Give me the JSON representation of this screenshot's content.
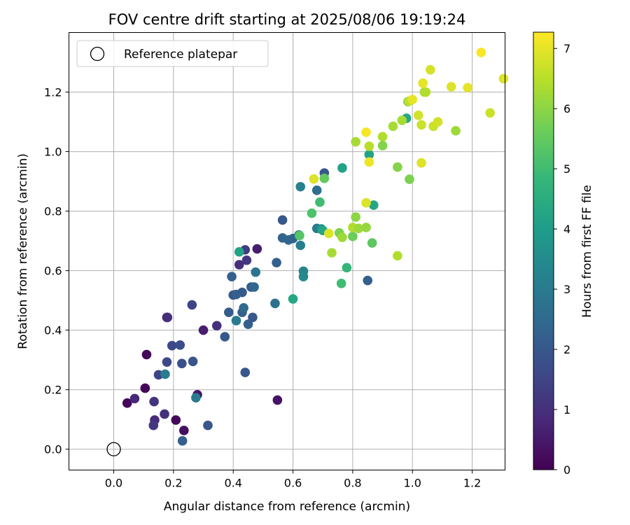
{
  "chart_data": {
    "type": "scatter",
    "title": "FOV centre drift starting at 2025/08/06 19:19:24",
    "xlabel": "Angular distance from reference (arcmin)",
    "ylabel": "Rotation from reference (arcmin)",
    "xlim": [
      -0.15,
      1.31
    ],
    "ylim": [
      -0.07,
      1.4
    ],
    "xticks": [
      0.0,
      0.2,
      0.4,
      0.6,
      0.8,
      1.0,
      1.2
    ],
    "xtick_labels": [
      "0.0",
      "0.2",
      "0.4",
      "0.6",
      "0.8",
      "1.0",
      "1.2"
    ],
    "yticks": [
      0.0,
      0.2,
      0.4,
      0.6,
      0.8,
      1.0,
      1.2
    ],
    "ytick_labels": [
      "0.0",
      "0.2",
      "0.4",
      "0.6",
      "0.8",
      "1.0",
      "1.2"
    ],
    "grid": true,
    "legend": {
      "location": "upper-left",
      "entries": [
        {
          "label": "Reference platepar",
          "marker": "open-circle",
          "x": 0.0,
          "y": 0.0
        }
      ]
    },
    "colorbar": {
      "label": "Hours from first FF file",
      "colormap": "viridis",
      "range": [
        0,
        7.27
      ],
      "ticks": [
        0,
        1,
        2,
        3,
        4,
        5,
        6,
        7
      ],
      "tick_labels": [
        "0",
        "1",
        "2",
        "3",
        "4",
        "5",
        "6",
        "7"
      ]
    },
    "colormap_stops": [
      "#440154",
      "#482878",
      "#3e4989",
      "#31688e",
      "#26828e",
      "#1f9e89",
      "#35b779",
      "#6ece58",
      "#b5de2b",
      "#fde725"
    ],
    "points": [
      [
        0.045,
        0.155,
        0.1
      ],
      [
        0.105,
        0.205,
        0.1
      ],
      [
        0.11,
        0.318,
        0.1
      ],
      [
        0.208,
        0.098,
        0.1
      ],
      [
        0.235,
        0.063,
        0.3
      ],
      [
        0.28,
        0.183,
        0.4
      ],
      [
        0.178,
        0.443,
        0.3
      ],
      [
        0.3,
        0.4,
        0.6
      ],
      [
        0.548,
        0.165,
        0.4
      ],
      [
        0.48,
        0.673,
        0.6
      ],
      [
        0.07,
        0.17,
        0.8
      ],
      [
        0.137,
        0.098,
        0.9
      ],
      [
        0.17,
        0.118,
        1.0
      ],
      [
        0.135,
        0.16,
        1.1
      ],
      [
        0.133,
        0.08,
        1.2
      ],
      [
        0.18,
        0.443,
        1.0
      ],
      [
        0.345,
        0.415,
        1.0
      ],
      [
        0.42,
        0.62,
        1.0
      ],
      [
        0.445,
        0.635,
        1.2
      ],
      [
        0.44,
        0.67,
        1.3
      ],
      [
        0.15,
        0.25,
        1.5
      ],
      [
        0.178,
        0.293,
        1.6
      ],
      [
        0.195,
        0.348,
        1.6
      ],
      [
        0.222,
        0.35,
        1.7
      ],
      [
        0.228,
        0.288,
        1.8
      ],
      [
        0.262,
        0.485,
        1.5
      ],
      [
        0.265,
        0.295,
        1.9
      ],
      [
        0.315,
        0.08,
        2.0
      ],
      [
        0.23,
        0.028,
        2.2
      ],
      [
        0.372,
        0.378,
        2.0
      ],
      [
        0.385,
        0.46,
        2.1
      ],
      [
        0.4,
        0.518,
        2.0
      ],
      [
        0.41,
        0.52,
        2.2
      ],
      [
        0.43,
        0.527,
        2.1
      ],
      [
        0.43,
        0.46,
        2.2
      ],
      [
        0.44,
        0.258,
        2.0
      ],
      [
        0.45,
        0.42,
        2.2
      ],
      [
        0.465,
        0.443,
        2.0
      ],
      [
        0.46,
        0.545,
        2.1
      ],
      [
        0.47,
        0.545,
        2.4
      ],
      [
        0.395,
        0.58,
        2.2
      ],
      [
        0.435,
        0.475,
        2.5
      ],
      [
        0.545,
        0.627,
        2.2
      ],
      [
        0.565,
        0.77,
        2.0
      ],
      [
        0.565,
        0.71,
        2.3
      ],
      [
        0.585,
        0.703,
        2.4
      ],
      [
        0.6,
        0.708,
        2.3
      ],
      [
        0.62,
        0.72,
        2.5
      ],
      [
        0.54,
        0.49,
        2.7
      ],
      [
        0.475,
        0.595,
        2.8
      ],
      [
        0.41,
        0.432,
        3.0
      ],
      [
        0.625,
        0.685,
        3.1
      ],
      [
        0.635,
        0.598,
        3.3
      ],
      [
        0.635,
        0.58,
        3.4
      ],
      [
        0.625,
        0.882,
        3.2
      ],
      [
        0.68,
        0.87,
        2.6
      ],
      [
        0.705,
        0.928,
        2.0
      ],
      [
        0.85,
        0.567,
        2.2
      ],
      [
        0.68,
        0.742,
        3.0
      ],
      [
        0.695,
        0.74,
        3.7
      ],
      [
        0.7,
        0.735,
        4.3
      ],
      [
        0.275,
        0.173,
        3.0
      ],
      [
        0.172,
        0.252,
        3.1
      ],
      [
        0.42,
        0.663,
        4.2
      ],
      [
        0.6,
        0.505,
        4.3
      ],
      [
        0.765,
        0.945,
        4.2
      ],
      [
        0.87,
        0.82,
        4.3
      ],
      [
        0.855,
        0.99,
        4.2
      ],
      [
        0.98,
        1.112,
        4.3
      ],
      [
        0.78,
        0.61,
        4.8
      ],
      [
        0.762,
        0.557,
        5.0
      ],
      [
        0.69,
        0.83,
        5.0
      ],
      [
        0.663,
        0.793,
        5.2
      ],
      [
        0.622,
        0.718,
        5.3
      ],
      [
        0.705,
        0.91,
        5.5
      ],
      [
        0.865,
        0.693,
        5.4
      ],
      [
        0.8,
        0.715,
        5.6
      ],
      [
        0.755,
        0.727,
        5.8
      ],
      [
        0.765,
        0.712,
        6.2
      ],
      [
        0.73,
        0.66,
        6.3
      ],
      [
        0.8,
        0.745,
        6.4
      ],
      [
        0.81,
        0.78,
        6.0
      ],
      [
        0.82,
        0.742,
        6.2
      ],
      [
        0.845,
        0.745,
        6.1
      ],
      [
        0.81,
        1.033,
        6.3
      ],
      [
        0.855,
        1.018,
        6.5
      ],
      [
        0.9,
        1.05,
        6.4
      ],
      [
        0.935,
        1.085,
        6.3
      ],
      [
        0.9,
        1.02,
        5.9
      ],
      [
        0.95,
        0.948,
        5.9
      ],
      [
        0.99,
        0.907,
        5.8
      ],
      [
        0.95,
        0.65,
        6.4
      ],
      [
        0.965,
        1.105,
        6.3
      ],
      [
        0.985,
        1.168,
        6.0
      ],
      [
        0.99,
        1.17,
        6.6
      ],
      [
        1.0,
        1.175,
        7.0
      ],
      [
        1.02,
        1.122,
        6.8
      ],
      [
        1.03,
        1.09,
        6.7
      ],
      [
        1.045,
        1.2,
        6.5
      ],
      [
        1.04,
        1.2,
        6.4
      ],
      [
        1.035,
        1.23,
        7.0
      ],
      [
        1.06,
        1.275,
        6.8
      ],
      [
        1.07,
        1.085,
        6.7
      ],
      [
        1.085,
        1.1,
        6.8
      ],
      [
        1.03,
        0.962,
        6.9
      ],
      [
        1.13,
        1.218,
        6.9
      ],
      [
        1.145,
        1.07,
        6.2
      ],
      [
        1.185,
        1.215,
        7.0
      ],
      [
        1.23,
        1.333,
        7.2
      ],
      [
        1.26,
        1.13,
        6.7
      ],
      [
        1.305,
        1.245,
        6.9
      ],
      [
        0.67,
        0.908,
        6.9
      ],
      [
        0.72,
        0.725,
        6.9
      ],
      [
        0.845,
        0.828,
        6.9
      ],
      [
        0.855,
        0.965,
        7.1
      ],
      [
        0.845,
        1.065,
        7.2
      ]
    ]
  }
}
